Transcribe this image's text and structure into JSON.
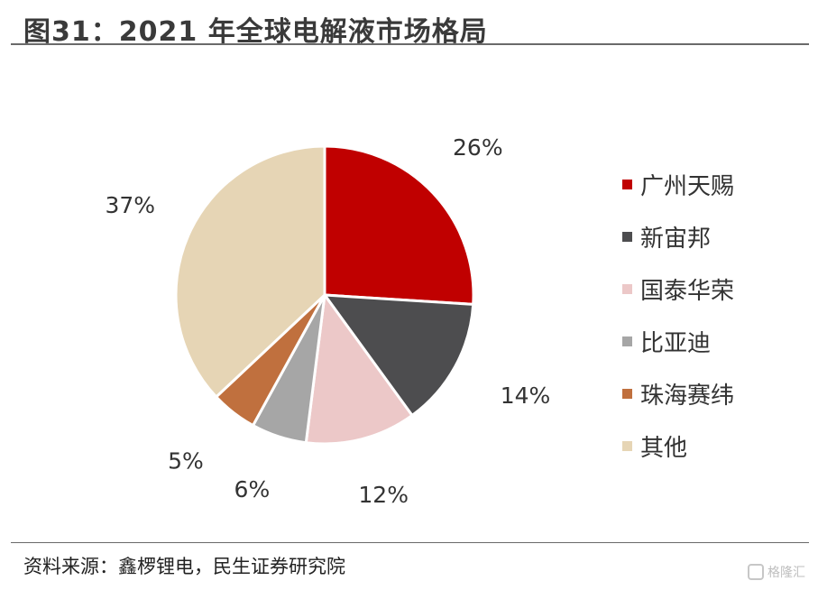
{
  "header": {
    "title": "图31：2021 年全球电解液市场格局"
  },
  "footer": {
    "source": "资料来源：鑫椤锂电，民生证券研究院"
  },
  "watermark": {
    "text": "格隆汇"
  },
  "colors": {
    "guangzhou_tianci": "#c00000",
    "xinzhoubang": "#4d4d4f",
    "guotai_huarong": "#ecc8c8",
    "byd": "#a6a6a6",
    "zhuhai_saiwei": "#c0703e",
    "others": "#e6d5b5"
  },
  "chart_data": {
    "type": "pie",
    "title": "2021 年全球电解液市场格局",
    "start_angle": "12 o'clock",
    "direction": "clockwise",
    "legend_position": "right",
    "categories": [
      "广州天赐",
      "新宙邦",
      "国泰华荣",
      "比亚迪",
      "珠海赛纬",
      "其他"
    ],
    "values": [
      26,
      14,
      12,
      6,
      5,
      37
    ],
    "labels": [
      "26%",
      "14%",
      "12%",
      "6%",
      "5%",
      "37%"
    ],
    "colors": [
      "#c00000",
      "#4d4d4f",
      "#ecc8c8",
      "#a6a6a6",
      "#c0703e",
      "#e6d5b5"
    ]
  }
}
